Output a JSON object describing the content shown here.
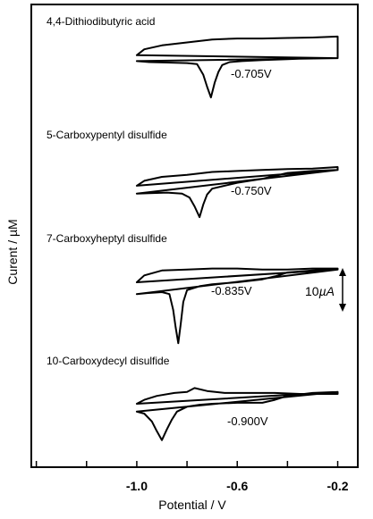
{
  "chart_data": {
    "type": "line",
    "xlabel": "Potential / V",
    "ylabel": "Curent / µM",
    "x_ticks": [
      "-1.0",
      "-0.6",
      "-0.2"
    ],
    "x_tick_values": [
      -1.0,
      -0.6,
      -0.2
    ],
    "xlim": [
      -1.42,
      -0.12
    ],
    "grid": false,
    "scale_bar": {
      "label": "10",
      "unit": "µA",
      "value_uA": 10
    },
    "series": [
      {
        "name": "4,4-Dithiodibutyric acid",
        "peak_label": "-0.705V",
        "peak_potential": -0.705,
        "cathodic": [
          [
            -1.0,
            14
          ],
          [
            -0.95,
            15
          ],
          [
            -0.88,
            15.5
          ],
          [
            -0.8,
            16
          ],
          [
            -0.76,
            17
          ],
          [
            -0.735,
            28
          ],
          [
            -0.72,
            40
          ],
          [
            -0.705,
            51
          ],
          [
            -0.69,
            36
          ],
          [
            -0.675,
            25
          ],
          [
            -0.66,
            18
          ],
          [
            -0.63,
            15
          ],
          [
            -0.58,
            14
          ],
          [
            -0.5,
            13
          ],
          [
            -0.4,
            12
          ],
          [
            -0.3,
            11
          ],
          [
            -0.2,
            11
          ]
        ],
        "anodic": [
          [
            -1.0,
            14
          ],
          [
            -1.0,
            8
          ],
          [
            -0.97,
            2
          ],
          [
            -0.9,
            -2
          ],
          [
            -0.8,
            -5
          ],
          [
            -0.7,
            -8
          ],
          [
            -0.6,
            -9
          ],
          [
            -0.5,
            -9
          ],
          [
            -0.4,
            -9.5
          ],
          [
            -0.3,
            -10
          ],
          [
            -0.2,
            -11
          ],
          [
            -0.2,
            11
          ]
        ]
      },
      {
        "name": "5-Carboxypentyl disulfide",
        "peak_label": "-0.750V",
        "peak_potential": -0.75,
        "cathodic": [
          [
            -1.0,
            17
          ],
          [
            -0.95,
            16.5
          ],
          [
            -0.88,
            16
          ],
          [
            -0.82,
            17
          ],
          [
            -0.79,
            21
          ],
          [
            -0.77,
            30
          ],
          [
            -0.75,
            41
          ],
          [
            -0.735,
            28
          ],
          [
            -0.72,
            18
          ],
          [
            -0.7,
            12
          ],
          [
            -0.65,
            9
          ],
          [
            -0.6,
            6
          ],
          [
            -0.55,
            4
          ],
          [
            -0.5,
            2
          ],
          [
            -0.45,
            -1
          ],
          [
            -0.4,
            -4
          ],
          [
            -0.3,
            -6
          ],
          [
            -0.2,
            -7
          ]
        ],
        "anodic": [
          [
            -1.0,
            17
          ],
          [
            -1.0,
            9
          ],
          [
            -0.97,
            4
          ],
          [
            -0.9,
            0
          ],
          [
            -0.8,
            -2
          ],
          [
            -0.7,
            -5
          ],
          [
            -0.6,
            -6
          ],
          [
            -0.5,
            -7
          ],
          [
            -0.4,
            -8
          ],
          [
            -0.3,
            -8.5
          ],
          [
            -0.2,
            -10
          ],
          [
            -0.2,
            -7
          ]
        ]
      },
      {
        "name": "7-Carboxyheptyl disulfide",
        "peak_label": "-0.835V",
        "peak_potential": -0.835,
        "cathodic": [
          [
            -1.0,
            22
          ],
          [
            -0.96,
            21
          ],
          [
            -0.9,
            20
          ],
          [
            -0.87,
            22
          ],
          [
            -0.855,
            38
          ],
          [
            -0.845,
            56
          ],
          [
            -0.835,
            72
          ],
          [
            -0.825,
            52
          ],
          [
            -0.815,
            30
          ],
          [
            -0.8,
            18
          ],
          [
            -0.75,
            14
          ],
          [
            -0.7,
            12
          ],
          [
            -0.6,
            10
          ],
          [
            -0.5,
            7
          ],
          [
            -0.45,
            4
          ],
          [
            -0.4,
            0
          ],
          [
            -0.3,
            -2
          ],
          [
            -0.2,
            -3
          ]
        ],
        "anodic": [
          [
            -1.0,
            22
          ],
          [
            -1.0,
            10
          ],
          [
            -0.97,
            3
          ],
          [
            -0.9,
            -2
          ],
          [
            -0.8,
            -3
          ],
          [
            -0.7,
            -4
          ],
          [
            -0.6,
            -4
          ],
          [
            -0.5,
            -3
          ],
          [
            -0.4,
            -3
          ],
          [
            -0.3,
            -4
          ],
          [
            -0.2,
            -4
          ],
          [
            -0.2,
            -3
          ]
        ]
      },
      {
        "name": "10-Carboxydecyl disulfide",
        "peak_label": "-0.900V",
        "peak_potential": -0.9,
        "cathodic": [
          [
            -1.0,
            18
          ],
          [
            -0.97,
            20
          ],
          [
            -0.94,
            28
          ],
          [
            -0.92,
            38
          ],
          [
            -0.9,
            47
          ],
          [
            -0.88,
            36
          ],
          [
            -0.86,
            26
          ],
          [
            -0.84,
            18
          ],
          [
            -0.8,
            13
          ],
          [
            -0.75,
            11
          ],
          [
            -0.7,
            10
          ],
          [
            -0.6,
            9
          ],
          [
            -0.5,
            9
          ],
          [
            -0.45,
            6
          ],
          [
            -0.4,
            2
          ],
          [
            -0.3,
            -1
          ],
          [
            -0.2,
            -2
          ]
        ],
        "anodic": [
          [
            -1.0,
            18
          ],
          [
            -1.0,
            10
          ],
          [
            -0.97,
            6
          ],
          [
            -0.92,
            2
          ],
          [
            -0.85,
            -1
          ],
          [
            -0.8,
            -2
          ],
          [
            -0.77,
            -6
          ],
          [
            -0.72,
            -3
          ],
          [
            -0.65,
            -1
          ],
          [
            -0.55,
            -1
          ],
          [
            -0.45,
            -1
          ],
          [
            -0.35,
            0
          ],
          [
            -0.2,
            0
          ],
          [
            -0.2,
            -2
          ]
        ]
      }
    ]
  }
}
